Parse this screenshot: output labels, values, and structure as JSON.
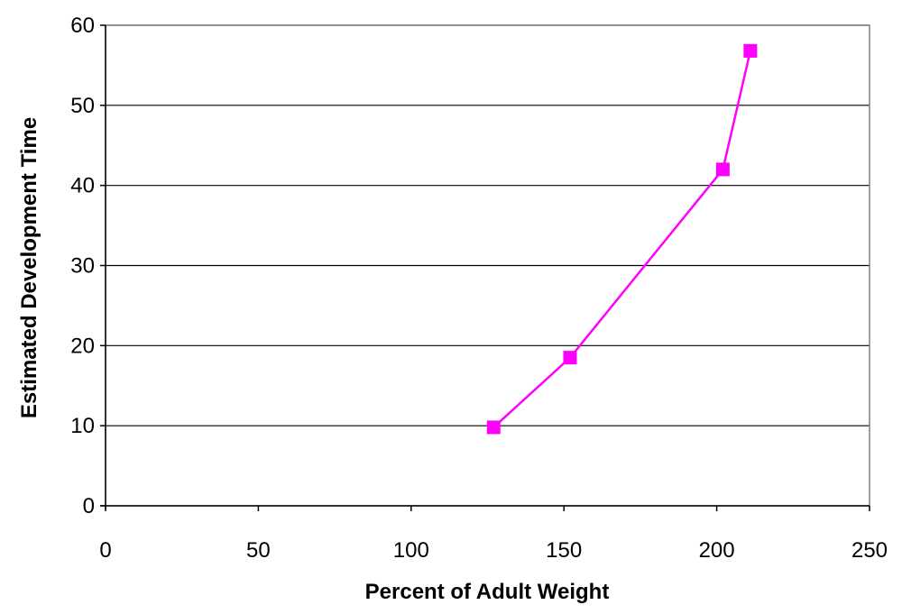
{
  "chart_data": {
    "type": "line",
    "title": "",
    "xlabel": "Percent of Adult Weight",
    "ylabel": "Estimated Development Time",
    "xlim": [
      0,
      250
    ],
    "ylim": [
      0,
      60
    ],
    "x_ticks": [
      0,
      50,
      100,
      150,
      200,
      250
    ],
    "y_ticks": [
      0,
      10,
      20,
      30,
      40,
      50,
      60
    ],
    "grid": "horizontal",
    "legend": "none",
    "series": [
      {
        "color": "#ff00ff",
        "marker": "square",
        "points": [
          {
            "x": 127,
            "y": 9.8
          },
          {
            "x": 152,
            "y": 18.5
          },
          {
            "x": 202,
            "y": 42
          },
          {
            "x": 211,
            "y": 56.8
          }
        ]
      }
    ]
  }
}
